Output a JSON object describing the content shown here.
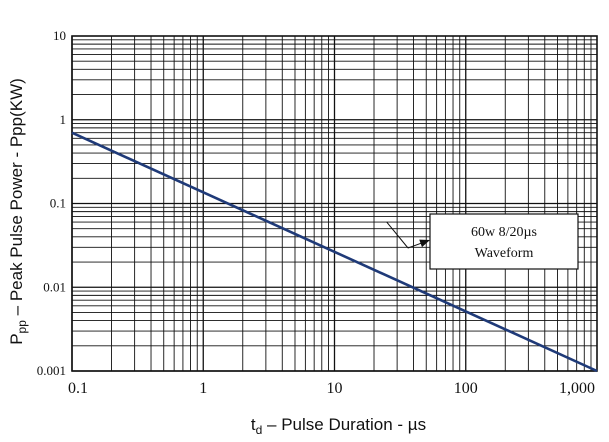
{
  "chart_data": {
    "type": "line",
    "scale": {
      "x": "log",
      "y": "log"
    },
    "xlim": [
      0.1,
      1000
    ],
    "ylim": [
      0.001,
      10
    ],
    "x_tick_labels": [
      "0.1",
      "1",
      "10",
      "100",
      "1,000"
    ],
    "y_tick_labels": [
      "0.001",
      "0.01",
      "0.1",
      "1",
      "10"
    ],
    "grid": true,
    "xlabel": {
      "main": "t",
      "sub": "d",
      "rest": " –  Pulse Duration  - µs"
    },
    "ylabel": {
      "main": "P",
      "sub": "pp",
      "rest": "  –  Peak Pulse Power - Ppp(KW)"
    },
    "series": [
      {
        "color": "#1f3a78",
        "x": [
          0.1,
          1000
        ],
        "y": [
          0.7,
          0.001
        ]
      }
    ],
    "annotation": {
      "lines": [
        "60w 8/20µs",
        "Waveform"
      ],
      "arrow_to": {
        "x": 25,
        "y": 0.06
      }
    }
  }
}
